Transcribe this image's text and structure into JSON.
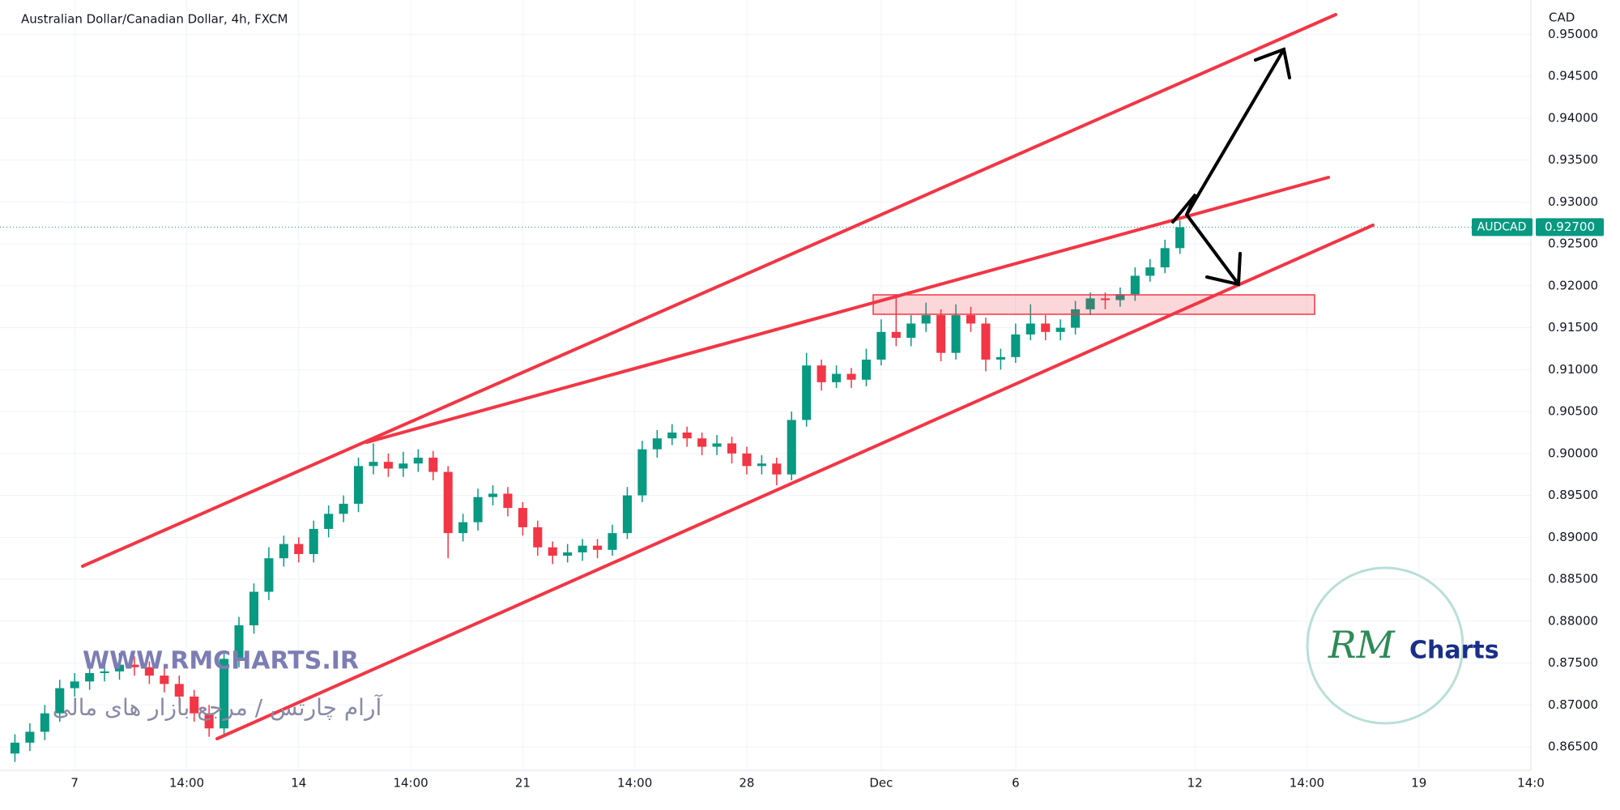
{
  "chart_data": {
    "type": "candlestick",
    "title": "Australian Dollar/Canadian Dollar, 4h, FXCM",
    "currency": "CAD",
    "symbol": "AUDCAD",
    "last_price": {
      "value": 0.927,
      "label": "0.92700"
    },
    "up_color": "#089981",
    "down_color": "#f23645",
    "x": [
      -8,
      -6,
      -4,
      -2,
      0,
      2,
      4,
      6,
      8,
      10,
      12,
      14,
      16,
      18,
      20,
      22,
      24,
      26,
      28,
      30,
      32,
      34,
      36,
      38,
      40,
      42,
      44,
      46,
      48,
      50,
      52,
      54,
      56,
      58,
      60,
      62,
      64,
      66,
      68,
      70,
      72,
      74,
      76,
      78,
      80,
      82,
      84,
      86,
      88,
      90,
      92,
      94,
      96,
      98,
      100,
      102,
      104,
      106,
      108,
      110,
      112,
      114,
      116,
      118,
      120,
      122,
      124,
      126,
      128,
      130,
      132,
      134,
      136,
      138,
      140,
      142,
      144,
      146,
      148
    ],
    "open": [
      0.8642,
      0.8655,
      0.8668,
      0.869,
      0.872,
      0.8728,
      0.8738,
      0.874,
      0.8748,
      0.8745,
      0.8735,
      0.8725,
      0.871,
      0.869,
      0.8672,
      0.8755,
      0.8795,
      0.8835,
      0.8875,
      0.8892,
      0.888,
      0.891,
      0.8928,
      0.894,
      0.8985,
      0.899,
      0.8982,
      0.8988,
      0.8995,
      0.8978,
      0.8905,
      0.8918,
      0.8948,
      0.8952,
      0.8935,
      0.8912,
      0.8888,
      0.8878,
      0.8882,
      0.889,
      0.8885,
      0.8905,
      0.895,
      0.9005,
      0.9018,
      0.9025,
      0.9018,
      0.9008,
      0.9012,
      0.9,
      0.8985,
      0.8988,
      0.8975,
      0.904,
      0.9105,
      0.9085,
      0.9095,
      0.9088,
      0.9112,
      0.9145,
      0.9138,
      0.9155,
      0.9165,
      0.912,
      0.9165,
      0.9155,
      0.9112,
      0.9115,
      0.9142,
      0.9155,
      0.9145,
      0.915,
      0.9172,
      0.9185,
      0.9183,
      0.919,
      0.9212,
      0.9222,
      0.9245
    ],
    "high": [
      0.8665,
      0.8678,
      0.87,
      0.873,
      0.8738,
      0.8748,
      0.8755,
      0.8762,
      0.8758,
      0.8752,
      0.8745,
      0.8735,
      0.8718,
      0.87,
      0.8765,
      0.8805,
      0.8845,
      0.8888,
      0.8902,
      0.89,
      0.892,
      0.8938,
      0.895,
      0.8995,
      0.9012,
      0.9,
      0.9002,
      0.9005,
      0.9003,
      0.8985,
      0.8928,
      0.8958,
      0.8962,
      0.896,
      0.8942,
      0.892,
      0.8895,
      0.8892,
      0.8898,
      0.8898,
      0.8915,
      0.896,
      0.9015,
      0.9028,
      0.9035,
      0.9032,
      0.9025,
      0.9022,
      0.902,
      0.9008,
      0.8998,
      0.8995,
      0.905,
      0.912,
      0.9112,
      0.9105,
      0.9102,
      0.9125,
      0.916,
      0.919,
      0.9165,
      0.918,
      0.9172,
      0.9178,
      0.9175,
      0.9162,
      0.9125,
      0.9155,
      0.9178,
      0.9165,
      0.916,
      0.9182,
      0.9192,
      0.9192,
      0.9198,
      0.9222,
      0.9232,
      0.9255,
      0.9278
    ],
    "low": [
      0.8632,
      0.8645,
      0.8658,
      0.868,
      0.871,
      0.8718,
      0.8728,
      0.873,
      0.8735,
      0.8725,
      0.8715,
      0.87,
      0.868,
      0.8662,
      0.8665,
      0.8745,
      0.8785,
      0.8825,
      0.8865,
      0.887,
      0.887,
      0.89,
      0.8918,
      0.893,
      0.8975,
      0.8972,
      0.8972,
      0.8978,
      0.8968,
      0.8875,
      0.8895,
      0.8908,
      0.8938,
      0.8925,
      0.8902,
      0.8878,
      0.8868,
      0.887,
      0.8872,
      0.8875,
      0.8878,
      0.8898,
      0.8942,
      0.8995,
      0.901,
      0.9008,
      0.8998,
      0.8998,
      0.8988,
      0.8975,
      0.8975,
      0.8962,
      0.8968,
      0.9032,
      0.9075,
      0.9078,
      0.9078,
      0.908,
      0.9105,
      0.9128,
      0.9128,
      0.9145,
      0.911,
      0.9112,
      0.9145,
      0.9098,
      0.91,
      0.9108,
      0.9135,
      0.9135,
      0.9135,
      0.9142,
      0.9165,
      0.9172,
      0.9175,
      0.9182,
      0.9205,
      0.9215,
      0.9238
    ],
    "close": [
      0.8655,
      0.8668,
      0.869,
      0.872,
      0.8728,
      0.8738,
      0.874,
      0.8748,
      0.8745,
      0.8735,
      0.8725,
      0.871,
      0.869,
      0.8672,
      0.8755,
      0.8795,
      0.8835,
      0.8875,
      0.8892,
      0.888,
      0.891,
      0.8928,
      0.894,
      0.8985,
      0.899,
      0.8982,
      0.8988,
      0.8995,
      0.8978,
      0.8905,
      0.8918,
      0.8948,
      0.8952,
      0.8935,
      0.8912,
      0.8888,
      0.8878,
      0.8882,
      0.889,
      0.8885,
      0.8905,
      0.895,
      0.9005,
      0.9018,
      0.9025,
      0.9018,
      0.9008,
      0.9012,
      0.9,
      0.8985,
      0.8988,
      0.8975,
      0.904,
      0.9105,
      0.9085,
      0.9095,
      0.9088,
      0.9112,
      0.9145,
      0.9138,
      0.9155,
      0.9165,
      0.912,
      0.9165,
      0.9155,
      0.9112,
      0.9115,
      0.9142,
      0.9155,
      0.9145,
      0.915,
      0.9172,
      0.9185,
      0.9183,
      0.919,
      0.9212,
      0.9222,
      0.9245,
      0.927
    ],
    "xlim": [
      -10,
      195
    ],
    "ylim": [
      0.8622,
      0.9541
    ],
    "xticks": [
      {
        "value": 0,
        "label": "7"
      },
      {
        "value": 15,
        "label": "14:00"
      },
      {
        "value": 30,
        "label": "14"
      },
      {
        "value": 45,
        "label": "14:00"
      },
      {
        "value": 60,
        "label": "21"
      },
      {
        "value": 75,
        "label": "14:00"
      },
      {
        "value": 90,
        "label": "28"
      },
      {
        "value": 108,
        "label": "Dec"
      },
      {
        "value": 126,
        "label": "6"
      },
      {
        "value": 150,
        "label": "12"
      },
      {
        "value": 165,
        "label": "14:00"
      },
      {
        "value": 180,
        "label": "19"
      },
      {
        "value": 195,
        "label": "14:0"
      }
    ],
    "yticks": [
      {
        "value": 0.865,
        "label": "0.86500"
      },
      {
        "value": 0.87,
        "label": "0.87000"
      },
      {
        "value": 0.875,
        "label": "0.87500"
      },
      {
        "value": 0.88,
        "label": "0.88000"
      },
      {
        "value": 0.885,
        "label": "0.88500"
      },
      {
        "value": 0.89,
        "label": "0.89000"
      },
      {
        "value": 0.895,
        "label": "0.89500"
      },
      {
        "value": 0.9,
        "label": "0.90000"
      },
      {
        "value": 0.905,
        "label": "0.90500"
      },
      {
        "value": 0.91,
        "label": "0.91000"
      },
      {
        "value": 0.915,
        "label": "0.91500"
      },
      {
        "value": 0.92,
        "label": "0.92000"
      },
      {
        "value": 0.925,
        "label": "0.92500"
      },
      {
        "value": 0.93,
        "label": "0.93000"
      },
      {
        "value": 0.935,
        "label": "0.93500"
      },
      {
        "value": 0.94,
        "label": "0.94000"
      },
      {
        "value": 0.945,
        "label": "0.94500"
      },
      {
        "value": 0.95,
        "label": "0.95000"
      }
    ],
    "watermark": "WWW.RMCHARTS.IR",
    "watermark_fa": "آرام چارتس / مرجع بازار های مالی",
    "logo_initials": "RM",
    "logo_text": "Charts"
  }
}
